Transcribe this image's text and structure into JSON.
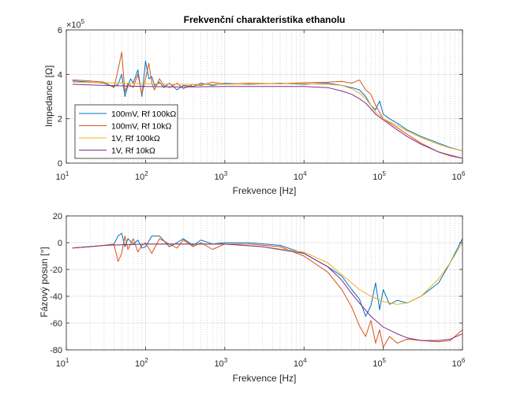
{
  "chart_data": [
    {
      "type": "line",
      "title": "Frekvenční charakteristika ethanolu",
      "xlabel": "Frekvence [Hz]",
      "ylabel": "Impedance [Ω]",
      "xscale": "log",
      "xlim": [
        10,
        1000000
      ],
      "ylim": [
        0,
        600000
      ],
      "y_multiplier_label": "×10",
      "y_multiplier_exp": "5",
      "yticks": [
        0,
        2,
        4,
        6
      ],
      "xticks": [
        {
          "base": "10",
          "exp": "1"
        },
        {
          "base": "10",
          "exp": "2"
        },
        {
          "base": "10",
          "exp": "3"
        },
        {
          "base": "10",
          "exp": "4"
        },
        {
          "base": "10",
          "exp": "5"
        },
        {
          "base": "10",
          "exp": "6"
        }
      ],
      "grid": true,
      "legend": "lower-left",
      "series": [
        {
          "name": "100mV, Rf 100kΩ",
          "color": "#0072BD",
          "x": [
            12,
            20,
            30,
            40,
            45,
            50,
            55,
            60,
            65,
            70,
            80,
            90,
            100,
            110,
            120,
            130,
            150,
            170,
            200,
            250,
            300,
            400,
            500,
            700,
            1000,
            2000,
            5000,
            10000,
            20000,
            30000,
            40000,
            50000,
            60000,
            70000,
            80000,
            90000,
            100000,
            120000,
            150000,
            200000,
            300000,
            500000,
            700000,
            1000000
          ],
          "y": [
            370000,
            365000,
            360000,
            345000,
            355000,
            400000,
            300000,
            350000,
            380000,
            360000,
            420000,
            300000,
            460000,
            380000,
            390000,
            350000,
            365000,
            340000,
            360000,
            330000,
            350000,
            345000,
            360000,
            350000,
            360000,
            355000,
            360000,
            355000,
            360000,
            350000,
            340000,
            330000,
            300000,
            260000,
            240000,
            280000,
            220000,
            200000,
            180000,
            150000,
            120000,
            90000,
            70000,
            55000
          ]
        },
        {
          "name": "100mV, Rf 10kΩ",
          "color": "#D95319",
          "x": [
            12,
            20,
            30,
            40,
            45,
            50,
            55,
            60,
            70,
            80,
            90,
            100,
            110,
            120,
            130,
            150,
            170,
            200,
            250,
            300,
            400,
            500,
            700,
            1000,
            2000,
            5000,
            10000,
            20000,
            30000,
            40000,
            50000,
            60000,
            70000,
            80000,
            100000,
            150000,
            200000,
            300000,
            500000,
            1000000
          ],
          "y": [
            375000,
            370000,
            365000,
            340000,
            420000,
            500000,
            320000,
            360000,
            340000,
            400000,
            310000,
            380000,
            450000,
            360000,
            330000,
            380000,
            350000,
            340000,
            360000,
            335000,
            355000,
            350000,
            365000,
            355000,
            360000,
            358000,
            362000,
            365000,
            368000,
            360000,
            375000,
            330000,
            310000,
            260000,
            200000,
            160000,
            130000,
            90000,
            50000,
            22000
          ]
        },
        {
          "name": "1V, Rf 100kΩ",
          "color": "#EDB120",
          "x": [
            12,
            30,
            100,
            300,
            1000,
            3000,
            10000,
            20000,
            30000,
            40000,
            50000,
            60000,
            70000,
            80000,
            100000,
            150000,
            200000,
            300000,
            500000,
            700000,
            1000000
          ],
          "y": [
            365000,
            362000,
            358000,
            355000,
            355000,
            358000,
            358000,
            355000,
            350000,
            335000,
            315000,
            290000,
            260000,
            230000,
            200000,
            170000,
            145000,
            115000,
            85000,
            68000,
            55000
          ]
        },
        {
          "name": "1V, Rf 10kΩ",
          "color": "#7E2F8E",
          "x": [
            12,
            30,
            100,
            300,
            1000,
            3000,
            10000,
            20000,
            30000,
            40000,
            50000,
            60000,
            70000,
            80000,
            100000,
            150000,
            200000,
            300000,
            500000,
            700000,
            1000000
          ],
          "y": [
            355000,
            350000,
            345000,
            343000,
            345000,
            345000,
            345000,
            340000,
            325000,
            310000,
            290000,
            270000,
            245000,
            220000,
            195000,
            150000,
            120000,
            85000,
            50000,
            33000,
            22000
          ]
        }
      ]
    },
    {
      "type": "line",
      "title": "",
      "xlabel": "Frekvence [Hz]",
      "ylabel": "Fázový posun [°]",
      "xscale": "log",
      "xlim": [
        10,
        1000000
      ],
      "ylim": [
        -80,
        20
      ],
      "yticks": [
        -80,
        -60,
        -40,
        -20,
        0,
        20
      ],
      "xticks": [
        {
          "base": "10",
          "exp": "1"
        },
        {
          "base": "10",
          "exp": "2"
        },
        {
          "base": "10",
          "exp": "3"
        },
        {
          "base": "10",
          "exp": "4"
        },
        {
          "base": "10",
          "exp": "5"
        },
        {
          "base": "10",
          "exp": "6"
        }
      ],
      "grid": true,
      "series": [
        {
          "name": "100mV, Rf 100kΩ",
          "color": "#0072BD",
          "x": [
            12,
            20,
            30,
            40,
            45,
            50,
            55,
            60,
            70,
            80,
            90,
            100,
            120,
            150,
            200,
            250,
            300,
            400,
            500,
            700,
            1000,
            2000,
            5000,
            10000,
            20000,
            30000,
            40000,
            50000,
            60000,
            70000,
            80000,
            90000,
            100000,
            120000,
            150000,
            200000,
            300000,
            500000,
            700000,
            1000000
          ],
          "y": [
            -4,
            -3,
            -2,
            -1,
            5,
            7,
            -3,
            3,
            -1,
            2,
            -4,
            -3,
            5,
            5,
            -3,
            0,
            3,
            -2,
            2,
            -1,
            0,
            0,
            -2,
            -8,
            -18,
            -25,
            -35,
            -42,
            -55,
            -47,
            -30,
            -50,
            -35,
            -46,
            -43,
            -45,
            -40,
            -30,
            -15,
            3
          ]
        },
        {
          "name": "100mV, Rf 10kΩ",
          "color": "#D95319",
          "x": [
            12,
            20,
            30,
            40,
            45,
            50,
            55,
            60,
            70,
            80,
            90,
            100,
            120,
            150,
            200,
            250,
            300,
            400,
            500,
            700,
            1000,
            2000,
            5000,
            10000,
            20000,
            30000,
            40000,
            50000,
            60000,
            70000,
            80000,
            90000,
            100000,
            120000,
            150000,
            200000,
            300000,
            500000,
            700000,
            1000000
          ],
          "y": [
            -4,
            -3,
            -2,
            -1,
            -14,
            -8,
            5,
            -5,
            3,
            -7,
            -2,
            0,
            -8,
            3,
            -1,
            -4,
            2,
            -3,
            0,
            -5,
            -1,
            -1,
            -3,
            -10,
            -22,
            -35,
            -48,
            -62,
            -70,
            -58,
            -75,
            -65,
            -78,
            -70,
            -75,
            -72,
            -73,
            -74,
            -73,
            -65
          ]
        },
        {
          "name": "1V, Rf 100kΩ",
          "color": "#EDB120",
          "x": [
            12,
            30,
            100,
            300,
            1000,
            3000,
            10000,
            20000,
            30000,
            40000,
            50000,
            70000,
            100000,
            150000,
            200000,
            300000,
            500000,
            700000,
            1000000
          ],
          "y": [
            -4,
            -2,
            -1,
            -1,
            -1,
            -3,
            -7,
            -15,
            -24,
            -30,
            -35,
            -40,
            -44,
            -46,
            -45,
            -40,
            -27,
            -15,
            0
          ]
        },
        {
          "name": "1V, Rf 10kΩ",
          "color": "#7E2F8E",
          "x": [
            12,
            30,
            100,
            300,
            1000,
            3000,
            10000,
            20000,
            30000,
            40000,
            50000,
            70000,
            100000,
            150000,
            200000,
            300000,
            500000,
            700000,
            1000000
          ],
          "y": [
            -4,
            -2,
            -1,
            -1,
            -1,
            -3,
            -8,
            -18,
            -28,
            -38,
            -45,
            -55,
            -63,
            -68,
            -71,
            -73,
            -73,
            -72,
            -68
          ]
        }
      ]
    }
  ]
}
